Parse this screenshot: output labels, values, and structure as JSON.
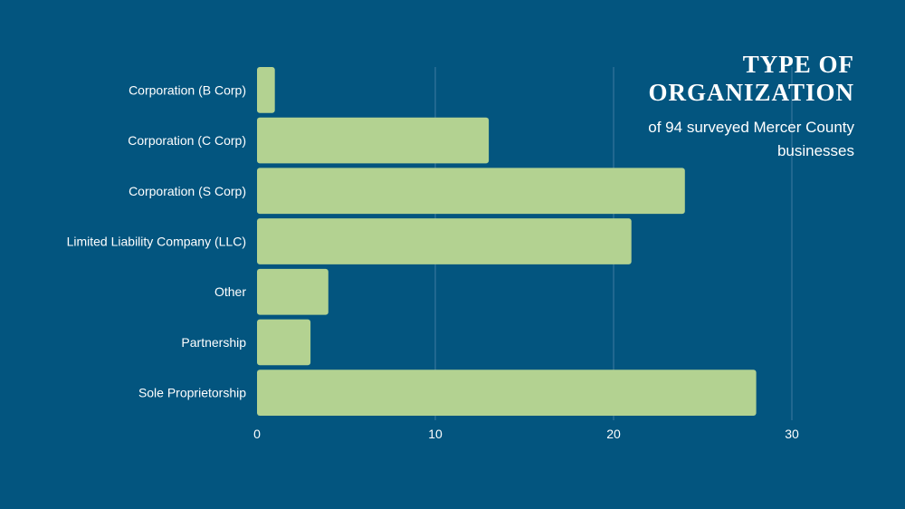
{
  "colors": {
    "background": "#03557f",
    "bar": "#b3d291",
    "gridline": "#3f7aa0",
    "text": "#ffffff"
  },
  "title": {
    "line1": "TYPE OF",
    "line2": "ORGANIZATION",
    "subtitle": "of 94 surveyed Mercer County businesses"
  },
  "chart_data": {
    "type": "bar",
    "orientation": "horizontal",
    "categories": [
      "Corporation (B Corp)",
      "Corporation (C Corp)",
      "Corporation (S Corp)",
      "Limited Liability Company (LLC)",
      "Other",
      "Partnership",
      "Sole Proprietorship"
    ],
    "values": [
      1,
      13,
      24,
      21,
      4,
      3,
      28
    ],
    "xlim": [
      0,
      30
    ],
    "xticks": [
      0,
      10,
      20,
      30
    ],
    "grid": true,
    "legend": "none"
  }
}
